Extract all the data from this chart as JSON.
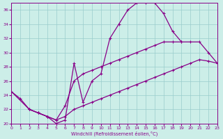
{
  "xlabel": "Windchill (Refroidissement éolien,°C)",
  "xlim": [
    0,
    23
  ],
  "ylim": [
    20,
    37
  ],
  "yticks": [
    20,
    22,
    24,
    26,
    28,
    30,
    32,
    34,
    36
  ],
  "xticks": [
    0,
    1,
    2,
    3,
    4,
    5,
    6,
    7,
    8,
    9,
    10,
    11,
    12,
    13,
    14,
    15,
    16,
    17,
    18,
    19,
    20,
    21,
    22,
    23
  ],
  "bg_color": "#cceee8",
  "line_color": "#880088",
  "grid_color": "#99cccc",
  "line1_x": [
    0,
    1,
    2,
    3,
    4,
    5,
    6,
    7,
    8,
    9,
    10,
    11,
    12,
    13,
    14,
    15,
    16,
    17,
    18,
    19
  ],
  "line1_y": [
    24.5,
    23.5,
    22.0,
    21.5,
    21.0,
    20.0,
    20.5,
    28.5,
    23.0,
    26.0,
    27.0,
    32.0,
    34.0,
    36.0,
    37.0,
    37.0,
    37.0,
    35.5,
    33.0,
    31.5
  ],
  "line2_x": [
    0,
    2,
    3,
    4,
    5,
    6,
    7,
    8,
    9,
    10,
    11,
    12,
    13,
    14,
    15,
    16,
    17,
    18,
    19,
    20,
    21,
    22,
    23
  ],
  "line2_y": [
    24.5,
    22.0,
    21.5,
    21.0,
    20.5,
    22.5,
    26.0,
    27.0,
    27.5,
    28.0,
    28.5,
    29.0,
    29.5,
    30.0,
    30.5,
    31.0,
    31.5,
    31.5,
    31.5,
    31.5,
    31.5,
    30.0,
    28.5
  ],
  "line3_x": [
    2,
    3,
    4,
    5,
    6,
    7,
    8,
    9,
    10,
    11,
    12,
    13,
    14,
    15,
    16,
    17,
    18,
    19,
    20,
    21,
    22,
    23
  ],
  "line3_y": [
    22.0,
    21.5,
    21.0,
    20.5,
    21.0,
    22.0,
    22.5,
    23.0,
    23.5,
    24.0,
    24.5,
    25.0,
    25.5,
    26.0,
    26.5,
    27.0,
    27.5,
    28.0,
    28.5,
    29.0,
    28.8,
    28.5
  ]
}
